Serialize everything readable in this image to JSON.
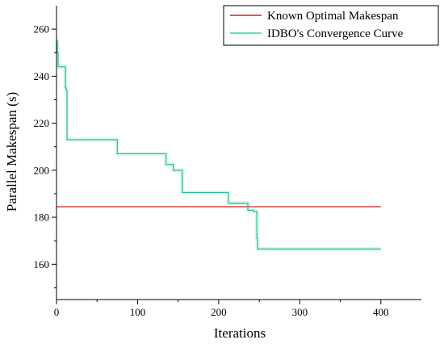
{
  "chart_data": {
    "type": "line",
    "xlabel": "Iterations",
    "ylabel": "Parallel Makespan (s)",
    "xlim": [
      0,
      450
    ],
    "ylim": [
      145,
      270
    ],
    "x_ticks": [
      0,
      100,
      200,
      300,
      400
    ],
    "y_ticks": [
      160,
      180,
      200,
      220,
      240,
      260
    ],
    "legend_position": "top-right",
    "grid": false,
    "series": [
      {
        "name": "Known Optimal Makespan",
        "color": "#cc2222",
        "x": [
          0,
          400
        ],
        "y": [
          184.5,
          184.5
        ]
      },
      {
        "name": "IDBO's Convergence Curve",
        "color": "#2ed7a6",
        "step": true,
        "x": [
          0,
          1,
          2,
          10,
          11,
          12,
          13,
          74,
          75,
          134,
          135,
          143,
          144,
          154,
          155,
          211,
          212,
          235,
          236,
          242,
          243,
          246,
          247,
          248,
          249,
          400
        ],
        "y": [
          255,
          250,
          244,
          244,
          235,
          234,
          213,
          213,
          207,
          207,
          202.5,
          202.5,
          200,
          200,
          190.5,
          190.5,
          186,
          186,
          183,
          183,
          182.5,
          182.5,
          171,
          166.5,
          166.5,
          166.5
        ]
      }
    ]
  }
}
